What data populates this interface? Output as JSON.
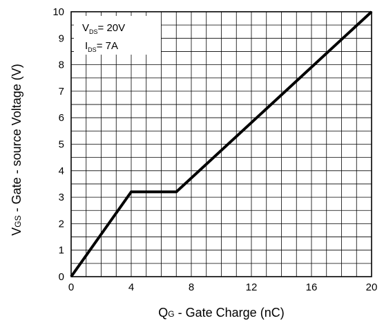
{
  "chart_data": {
    "type": "line",
    "title": "",
    "xlabel": {
      "main": "Q",
      "sub": "G",
      "rest": " - Gate Charge (nC)"
    },
    "ylabel": {
      "main": "V",
      "sub": "GS",
      "rest": " - Gate - source Voltage (V)"
    },
    "xlim": [
      0,
      20
    ],
    "ylim": [
      0,
      10
    ],
    "x_ticks": [
      "0",
      "4",
      "8",
      "12",
      "16",
      "20"
    ],
    "y_ticks": [
      "0",
      "1",
      "2",
      "3",
      "4",
      "5",
      "6",
      "7",
      "8",
      "9",
      "10"
    ],
    "x_grid_step": 1,
    "y_grid_step": 0.5,
    "grid": true,
    "series": [
      {
        "x": [
          0,
          4,
          7,
          20
        ],
        "y": [
          0,
          3.2,
          3.2,
          10
        ]
      }
    ],
    "annotations": [
      {
        "main": "V",
        "sub": "DS",
        "rest": "= 20V"
      },
      {
        "main": "I",
        "sub": "DS",
        "rest": "= 7A"
      }
    ],
    "line_color": "#000000",
    "grid_color": "#000000"
  }
}
